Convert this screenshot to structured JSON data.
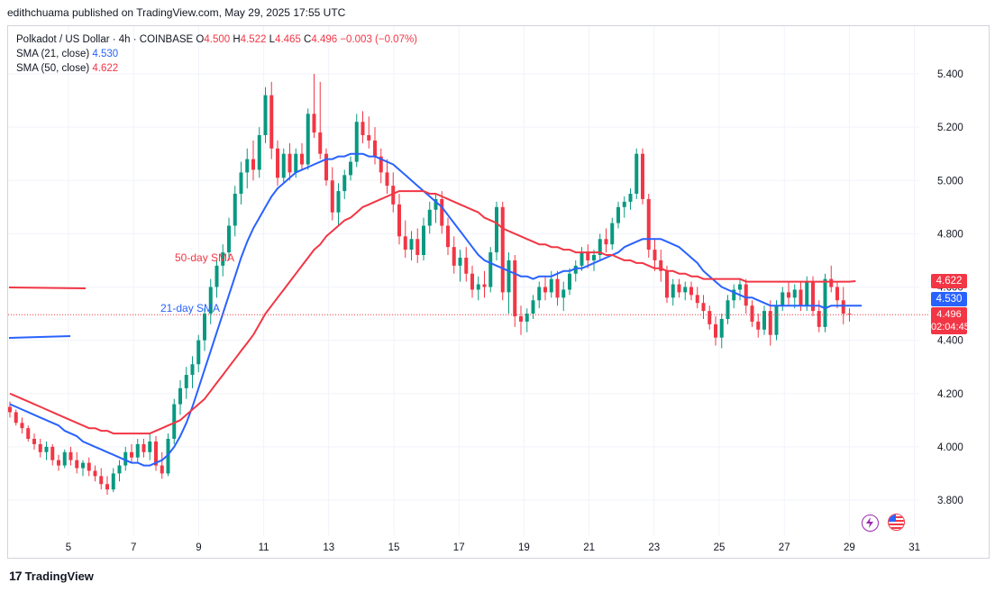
{
  "publisher_line": "edithchuama published on TradingView.com, May 29, 2025 17:55 UTC",
  "legend": {
    "symbol": "Polkadot / US Dollar · 4h · COINBASE",
    "o_key": "O",
    "o_val": "4.500",
    "h_key": "H",
    "h_val": "4.522",
    "l_key": "L",
    "l_val": "4.465",
    "c_key": "C",
    "c_val": "4.496",
    "change": "−0.003 (−0.07%)",
    "sma21_label": "SMA (21, close)",
    "sma21_value": "4.530",
    "sma50_label": "SMA (50, close)",
    "sma50_value": "4.622"
  },
  "annotations": {
    "sma50": "50-day SMA",
    "sma21": "21-day SMA"
  },
  "price_badges": {
    "sma50": "4.622",
    "sma21": "4.530",
    "last": "4.496",
    "countdown": "02:04:45"
  },
  "colors": {
    "up": "#089981",
    "down": "#f23645",
    "sma21": "#2962ff",
    "sma50": "#f23645",
    "grid": "#f0f3fa",
    "text": "#131722"
  },
  "footer": {
    "brand": "TradingView",
    "icon": "tradingview-logo-icon"
  },
  "icons": [
    "lightning-icon",
    "us-flag-icon"
  ],
  "chart_data": {
    "type": "candlestick",
    "x_tick_labels": [
      "5",
      "7",
      "9",
      "11",
      "13",
      "15",
      "17",
      "19",
      "21",
      "23",
      "25",
      "27",
      "29",
      "31"
    ],
    "y_ticks": [
      3.8,
      4.0,
      4.2,
      4.4,
      4.6,
      4.8,
      5.0,
      5.2,
      5.4
    ],
    "y_tick_labels": [
      "3.800",
      "4.000",
      "4.200",
      "4.400",
      "4.600",
      "4.800",
      "5.000",
      "5.200",
      "5.400"
    ],
    "ylim": [
      3.7,
      5.5
    ],
    "grid": true,
    "candles": [
      [
        4.15,
        4.17,
        4.11,
        4.13
      ],
      [
        4.13,
        4.14,
        4.08,
        4.09
      ],
      [
        4.09,
        4.11,
        4.05,
        4.07
      ],
      [
        4.07,
        4.08,
        4.02,
        4.03
      ],
      [
        4.03,
        4.05,
        3.99,
        4.01
      ],
      [
        4.01,
        4.03,
        3.96,
        3.98
      ],
      [
        3.98,
        4.02,
        3.95,
        4.0
      ],
      [
        4.0,
        4.01,
        3.93,
        3.95
      ],
      [
        3.95,
        3.97,
        3.91,
        3.93
      ],
      [
        3.93,
        3.99,
        3.92,
        3.98
      ],
      [
        3.98,
        4.0,
        3.93,
        3.95
      ],
      [
        3.95,
        3.98,
        3.9,
        3.92
      ],
      [
        3.92,
        3.95,
        3.89,
        3.94
      ],
      [
        3.94,
        3.96,
        3.89,
        3.91
      ],
      [
        3.91,
        3.93,
        3.87,
        3.89
      ],
      [
        3.89,
        3.92,
        3.84,
        3.86
      ],
      [
        3.86,
        3.89,
        3.82,
        3.84
      ],
      [
        3.84,
        3.92,
        3.83,
        3.9
      ],
      [
        3.9,
        3.95,
        3.87,
        3.93
      ],
      [
        3.93,
        4.0,
        3.91,
        3.98
      ],
      [
        3.98,
        4.01,
        3.94,
        3.96
      ],
      [
        3.96,
        4.03,
        3.94,
        4.01
      ],
      [
        4.01,
        4.03,
        3.96,
        3.98
      ],
      [
        3.98,
        4.05,
        3.95,
        4.02
      ],
      [
        4.02,
        4.04,
        3.91,
        3.93
      ],
      [
        3.93,
        3.98,
        3.88,
        3.9
      ],
      [
        3.9,
        4.05,
        3.89,
        4.03
      ],
      [
        4.03,
        4.18,
        4.01,
        4.16
      ],
      [
        4.16,
        4.25,
        4.12,
        4.22
      ],
      [
        4.22,
        4.3,
        4.18,
        4.27
      ],
      [
        4.27,
        4.34,
        4.22,
        4.31
      ],
      [
        4.31,
        4.42,
        4.28,
        4.4
      ],
      [
        4.4,
        4.52,
        4.36,
        4.5
      ],
      [
        4.5,
        4.63,
        4.46,
        4.6
      ],
      [
        4.6,
        4.7,
        4.56,
        4.68
      ],
      [
        4.68,
        4.76,
        4.64,
        4.73
      ],
      [
        4.73,
        4.86,
        4.7,
        4.83
      ],
      [
        4.83,
        4.98,
        4.79,
        4.95
      ],
      [
        4.95,
        5.07,
        4.91,
        5.03
      ],
      [
        5.03,
        5.12,
        4.97,
        5.08
      ],
      [
        5.08,
        5.15,
        5.0,
        5.04
      ],
      [
        5.04,
        5.2,
        5.01,
        5.17
      ],
      [
        5.17,
        5.35,
        5.14,
        5.32
      ],
      [
        5.32,
        5.37,
        5.08,
        5.12
      ],
      [
        5.12,
        5.15,
        4.98,
        5.01
      ],
      [
        5.01,
        5.12,
        4.99,
        5.1
      ],
      [
        5.1,
        5.14,
        5.0,
        5.03
      ],
      [
        5.03,
        5.12,
        5.01,
        5.1
      ],
      [
        5.1,
        5.14,
        5.04,
        5.06
      ],
      [
        5.06,
        5.27,
        5.04,
        5.25
      ],
      [
        5.25,
        5.4,
        5.16,
        5.18
      ],
      [
        5.18,
        5.37,
        5.08,
        5.1
      ],
      [
        5.1,
        5.12,
        4.98,
        5.0
      ],
      [
        5.0,
        5.05,
        4.85,
        4.88
      ],
      [
        4.88,
        4.99,
        4.83,
        4.96
      ],
      [
        4.96,
        5.04,
        4.93,
        5.02
      ],
      [
        5.02,
        5.09,
        5.0,
        5.07
      ],
      [
        5.07,
        5.25,
        5.05,
        5.22
      ],
      [
        5.22,
        5.26,
        5.14,
        5.17
      ],
      [
        5.17,
        5.24,
        5.12,
        5.15
      ],
      [
        5.15,
        5.2,
        5.06,
        5.09
      ],
      [
        5.09,
        5.12,
        4.99,
        5.03
      ],
      [
        5.03,
        5.08,
        4.95,
        4.98
      ],
      [
        4.98,
        5.03,
        4.88,
        4.91
      ],
      [
        4.91,
        4.95,
        4.76,
        4.79
      ],
      [
        4.79,
        4.85,
        4.71,
        4.74
      ],
      [
        4.74,
        4.81,
        4.7,
        4.78
      ],
      [
        4.78,
        4.82,
        4.69,
        4.72
      ],
      [
        4.72,
        4.86,
        4.7,
        4.83
      ],
      [
        4.83,
        4.92,
        4.8,
        4.89
      ],
      [
        4.89,
        4.95,
        4.84,
        4.93
      ],
      [
        4.93,
        4.96,
        4.8,
        4.83
      ],
      [
        4.83,
        4.86,
        4.72,
        4.75
      ],
      [
        4.75,
        4.79,
        4.65,
        4.68
      ],
      [
        4.68,
        4.74,
        4.62,
        4.71
      ],
      [
        4.71,
        4.75,
        4.62,
        4.65
      ],
      [
        4.65,
        4.68,
        4.56,
        4.59
      ],
      [
        4.59,
        4.64,
        4.55,
        4.61
      ],
      [
        4.61,
        4.66,
        4.56,
        4.6
      ],
      [
        4.6,
        4.75,
        4.58,
        4.73
      ],
      [
        4.73,
        4.92,
        4.7,
        4.9
      ],
      [
        4.9,
        4.92,
        4.55,
        4.58
      ],
      [
        4.58,
        4.73,
        4.5,
        4.7
      ],
      [
        4.7,
        4.72,
        4.45,
        4.49
      ],
      [
        4.49,
        4.53,
        4.42,
        4.47
      ],
      [
        4.47,
        4.52,
        4.43,
        4.5
      ],
      [
        4.5,
        4.57,
        4.48,
        4.55
      ],
      [
        4.55,
        4.62,
        4.52,
        4.6
      ],
      [
        4.6,
        4.64,
        4.55,
        4.58
      ],
      [
        4.58,
        4.66,
        4.56,
        4.63
      ],
      [
        4.63,
        4.66,
        4.53,
        4.56
      ],
      [
        4.56,
        4.62,
        4.51,
        4.59
      ],
      [
        4.59,
        4.67,
        4.57,
        4.65
      ],
      [
        4.65,
        4.7,
        4.62,
        4.68
      ],
      [
        4.68,
        4.75,
        4.66,
        4.73
      ],
      [
        4.73,
        4.76,
        4.67,
        4.7
      ],
      [
        4.7,
        4.74,
        4.66,
        4.72
      ],
      [
        4.72,
        4.8,
        4.7,
        4.78
      ],
      [
        4.78,
        4.82,
        4.73,
        4.76
      ],
      [
        4.76,
        4.86,
        4.74,
        4.84
      ],
      [
        4.84,
        4.92,
        4.82,
        4.9
      ],
      [
        4.9,
        4.94,
        4.86,
        4.92
      ],
      [
        4.92,
        4.97,
        4.89,
        4.95
      ],
      [
        4.95,
        5.12,
        4.93,
        5.1
      ],
      [
        5.1,
        5.12,
        4.91,
        4.93
      ],
      [
        4.93,
        4.95,
        4.71,
        4.74
      ],
      [
        4.74,
        4.78,
        4.66,
        4.7
      ],
      [
        4.7,
        4.74,
        4.62,
        4.66
      ],
      [
        4.66,
        4.68,
        4.54,
        4.56
      ],
      [
        4.56,
        4.63,
        4.53,
        4.61
      ],
      [
        4.61,
        4.63,
        4.56,
        4.58
      ],
      [
        4.58,
        4.62,
        4.55,
        4.6
      ],
      [
        4.6,
        4.62,
        4.55,
        4.57
      ],
      [
        4.57,
        4.6,
        4.52,
        4.54
      ],
      [
        4.54,
        4.57,
        4.48,
        4.51
      ],
      [
        4.51,
        4.53,
        4.44,
        4.46
      ],
      [
        4.46,
        4.49,
        4.38,
        4.41
      ],
      [
        4.41,
        4.5,
        4.37,
        4.48
      ],
      [
        4.48,
        4.57,
        4.46,
        4.55
      ],
      [
        4.55,
        4.61,
        4.52,
        4.59
      ],
      [
        4.59,
        4.63,
        4.55,
        4.61
      ],
      [
        4.61,
        4.63,
        4.5,
        4.53
      ],
      [
        4.53,
        4.55,
        4.45,
        4.47
      ],
      [
        4.47,
        4.5,
        4.41,
        4.44
      ],
      [
        4.44,
        4.53,
        4.42,
        4.51
      ],
      [
        4.51,
        4.55,
        4.38,
        4.42
      ],
      [
        4.42,
        4.55,
        4.4,
        4.53
      ],
      [
        4.53,
        4.6,
        4.51,
        4.58
      ],
      [
        4.58,
        4.62,
        4.53,
        4.56
      ],
      [
        4.56,
        4.61,
        4.52,
        4.59
      ],
      [
        4.59,
        4.62,
        4.51,
        4.53
      ],
      [
        4.53,
        4.64,
        4.51,
        4.62
      ],
      [
        4.62,
        4.64,
        4.49,
        4.51
      ],
      [
        4.51,
        4.55,
        4.43,
        4.45
      ],
      [
        4.45,
        4.65,
        4.43,
        4.63
      ],
      [
        4.63,
        4.68,
        4.58,
        4.6
      ],
      [
        4.6,
        4.62,
        4.52,
        4.55
      ],
      [
        4.55,
        4.6,
        4.46,
        4.5
      ],
      [
        4.5,
        4.52,
        4.47,
        4.496
      ]
    ],
    "series": [
      {
        "name": "SMA (21, close)",
        "values": [
          4.16,
          4.15,
          4.14,
          4.13,
          4.12,
          4.11,
          4.1,
          4.09,
          4.08,
          4.06,
          4.05,
          4.04,
          4.02,
          4.01,
          4.0,
          3.99,
          3.98,
          3.97,
          3.96,
          3.95,
          3.94,
          3.94,
          3.93,
          3.93,
          3.94,
          3.95,
          3.97,
          4.0,
          4.04,
          4.09,
          4.15,
          4.22,
          4.29,
          4.36,
          4.43,
          4.5,
          4.57,
          4.64,
          4.71,
          4.77,
          4.82,
          4.86,
          4.9,
          4.94,
          4.97,
          4.99,
          5.01,
          5.03,
          5.04,
          5.05,
          5.06,
          5.07,
          5.08,
          5.08,
          5.09,
          5.09,
          5.1,
          5.1,
          5.1,
          5.09,
          5.09,
          5.08,
          5.07,
          5.06,
          5.04,
          5.02,
          5.0,
          4.98,
          4.96,
          4.94,
          4.92,
          4.9,
          4.87,
          4.84,
          4.81,
          4.78,
          4.75,
          4.72,
          4.7,
          4.69,
          4.68,
          4.67,
          4.66,
          4.65,
          4.64,
          4.64,
          4.63,
          4.64,
          4.64,
          4.64,
          4.65,
          4.66,
          4.66,
          4.67,
          4.67,
          4.68,
          4.69,
          4.7,
          4.71,
          4.72,
          4.73,
          4.75,
          4.76,
          4.77,
          4.78,
          4.78,
          4.78,
          4.78,
          4.77,
          4.76,
          4.75,
          4.73,
          4.71,
          4.69,
          4.66,
          4.64,
          4.62,
          4.6,
          4.59,
          4.58,
          4.57,
          4.56,
          4.56,
          4.55,
          4.54,
          4.53,
          4.53,
          4.53,
          4.53,
          4.53,
          4.53,
          4.53,
          4.53,
          4.53,
          4.52,
          4.53,
          4.53,
          4.53,
          4.53,
          4.53,
          4.53
        ]
      },
      {
        "name": "SMA (50, close)",
        "values": [
          4.2,
          4.19,
          4.18,
          4.17,
          4.16,
          4.15,
          4.14,
          4.13,
          4.12,
          4.11,
          4.1,
          4.09,
          4.08,
          4.07,
          4.07,
          4.06,
          4.06,
          4.05,
          4.05,
          4.05,
          4.05,
          4.05,
          4.05,
          4.05,
          4.06,
          4.07,
          4.08,
          4.09,
          4.1,
          4.12,
          4.14,
          4.16,
          4.18,
          4.21,
          4.24,
          4.27,
          4.3,
          4.33,
          4.36,
          4.39,
          4.42,
          4.46,
          4.5,
          4.53,
          4.56,
          4.59,
          4.62,
          4.65,
          4.68,
          4.71,
          4.74,
          4.76,
          4.79,
          4.81,
          4.83,
          4.85,
          4.86,
          4.88,
          4.9,
          4.91,
          4.92,
          4.93,
          4.94,
          4.95,
          4.96,
          4.96,
          4.96,
          4.96,
          4.96,
          4.95,
          4.95,
          4.94,
          4.93,
          4.92,
          4.91,
          4.9,
          4.89,
          4.88,
          4.86,
          4.85,
          4.84,
          4.82,
          4.81,
          4.8,
          4.79,
          4.78,
          4.77,
          4.76,
          4.76,
          4.75,
          4.75,
          4.74,
          4.74,
          4.73,
          4.73,
          4.73,
          4.73,
          4.73,
          4.72,
          4.72,
          4.71,
          4.7,
          4.7,
          4.69,
          4.69,
          4.68,
          4.67,
          4.67,
          4.66,
          4.66,
          4.65,
          4.65,
          4.64,
          4.64,
          4.63,
          4.63,
          4.63,
          4.63,
          4.63,
          4.63,
          4.63,
          4.62,
          4.62,
          4.62,
          4.62,
          4.62,
          4.62,
          4.62,
          4.62,
          4.62,
          4.62,
          4.62,
          4.62,
          4.62,
          4.62,
          4.62,
          4.62,
          4.62,
          4.62,
          4.622
        ]
      }
    ]
  }
}
